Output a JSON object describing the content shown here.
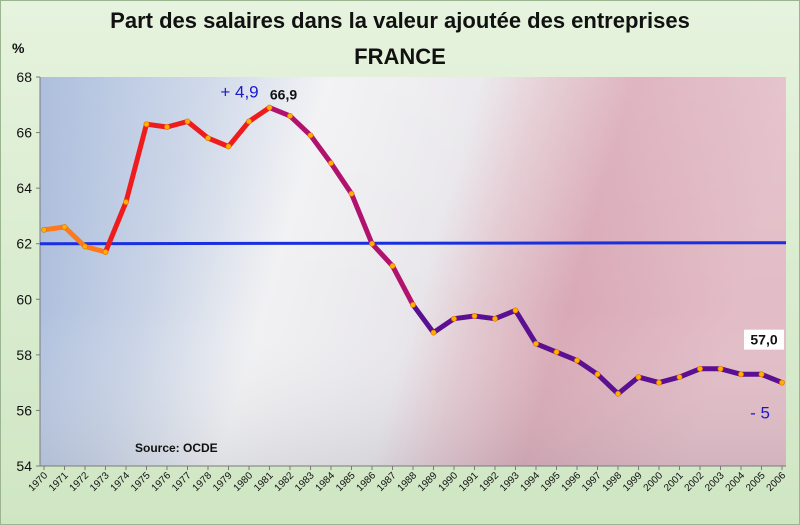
{
  "chart_data": {
    "type": "line",
    "title": "Part des salaires dans la valeur ajoutée des entreprises",
    "subtitle": "FRANCE",
    "ylabel": "%",
    "xlabel": "",
    "ylim": [
      54,
      68
    ],
    "yticks": [
      54,
      56,
      58,
      60,
      62,
      64,
      66,
      68
    ],
    "grid": false,
    "x": [
      "1970",
      "1971",
      "1972",
      "1973",
      "1974",
      "1975",
      "1976",
      "1977",
      "1978",
      "1979",
      "1980",
      "1981",
      "1982",
      "1983",
      "1984",
      "1985",
      "1986",
      "1987",
      "1988",
      "1989",
      "1990",
      "1991",
      "1992",
      "1993",
      "1994",
      "1995",
      "1996",
      "1997",
      "1998",
      "1999",
      "2000",
      "2001",
      "2002",
      "2003",
      "2004",
      "2005",
      "2006"
    ],
    "series": [
      {
        "values": [
          62.5,
          62.6,
          61.9,
          61.7,
          63.5,
          66.3,
          66.2,
          66.4,
          65.8,
          65.5,
          66.4,
          66.9,
          66.6,
          65.9,
          64.9,
          63.8,
          62.0,
          61.2,
          59.8,
          58.8,
          59.3,
          59.4,
          59.3,
          59.6,
          58.4,
          58.1,
          57.8,
          57.3,
          56.6,
          57.2,
          57.0,
          57.2,
          57.5,
          57.5,
          57.3,
          57.3,
          57.0
        ],
        "color_segments": [
          {
            "from": "1970",
            "to": "1973",
            "color": "#ff7a1a"
          },
          {
            "from": "1973",
            "to": "1981",
            "color": "#ee1c1c"
          },
          {
            "from": "1981",
            "to": "1988",
            "color": "#b0126e"
          },
          {
            "from": "1988",
            "to": "2006",
            "color": "#5a1090"
          }
        ],
        "marker_color": "#ffb000"
      }
    ],
    "reference_line": {
      "value": 62,
      "color": "#1a2fe0"
    },
    "annotations": [
      {
        "text": "+ 4,9",
        "year": "1981",
        "style": "blue"
      },
      {
        "text": "66,9",
        "year": "1981",
        "style": "black"
      },
      {
        "text": "57,0",
        "year": "2006",
        "style": "black"
      },
      {
        "text": "- 5",
        "year": "2006",
        "style": "blue"
      }
    ],
    "source": "Source: OCDE"
  }
}
